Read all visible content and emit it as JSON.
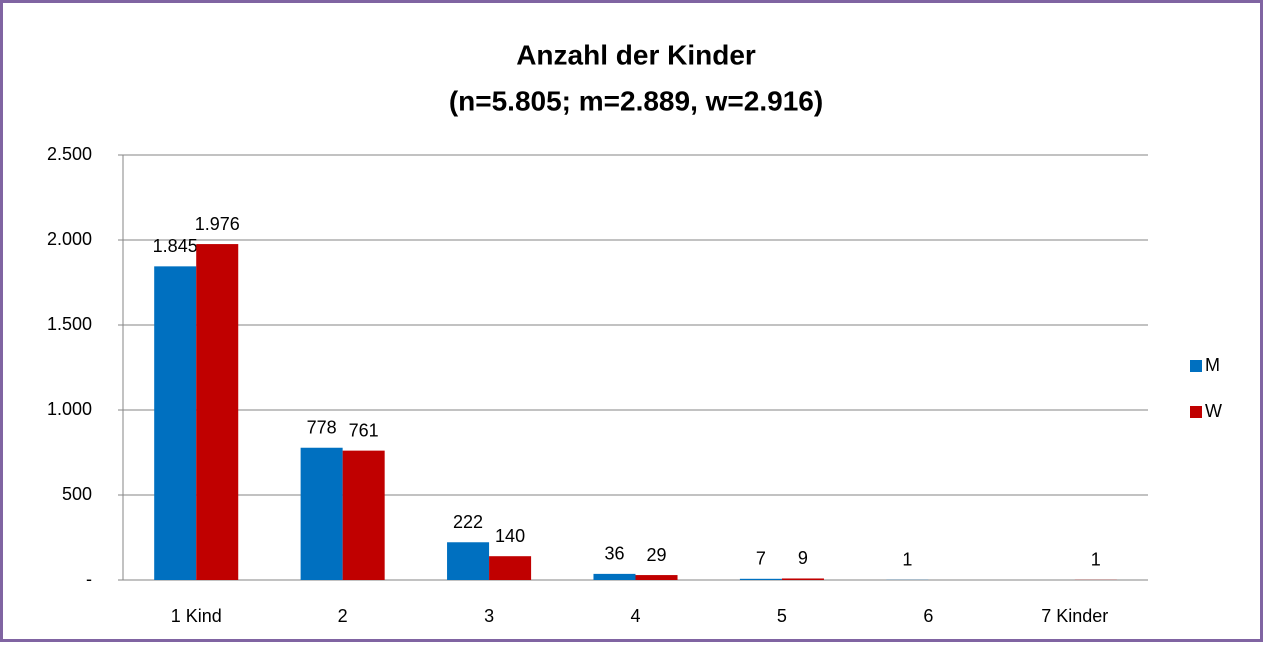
{
  "chart_data": {
    "type": "bar",
    "title": "Anzahl der Kinder",
    "subtitle": "(n=5.805; m=2.889, w=2.916)",
    "categories": [
      "1 Kind",
      "2",
      "3",
      "4",
      "5",
      "6",
      "7 Kinder"
    ],
    "series": [
      {
        "name": "M",
        "color": "#0070c0",
        "values": [
          1845,
          778,
          222,
          36,
          7,
          1,
          null
        ],
        "value_labels": [
          "1.845",
          "778",
          "222",
          "36",
          "7",
          "1",
          null
        ]
      },
      {
        "name": "W",
        "color": "#c00000",
        "values": [
          1976,
          761,
          140,
          29,
          9,
          null,
          1
        ],
        "value_labels": [
          "1.976",
          "761",
          "140",
          "29",
          "9",
          null,
          "1"
        ]
      }
    ],
    "ylim": [
      0,
      2500
    ],
    "yticks": [
      {
        "value": 0,
        "label": "-"
      },
      500,
      {
        "value": 1000,
        "label": "1.000"
      },
      {
        "value": 1500,
        "label": "1.500"
      },
      {
        "value": 2000,
        "label": "2.000"
      },
      {
        "value": 2500,
        "label": "2.500"
      }
    ],
    "grid": true,
    "legend": "right"
  }
}
